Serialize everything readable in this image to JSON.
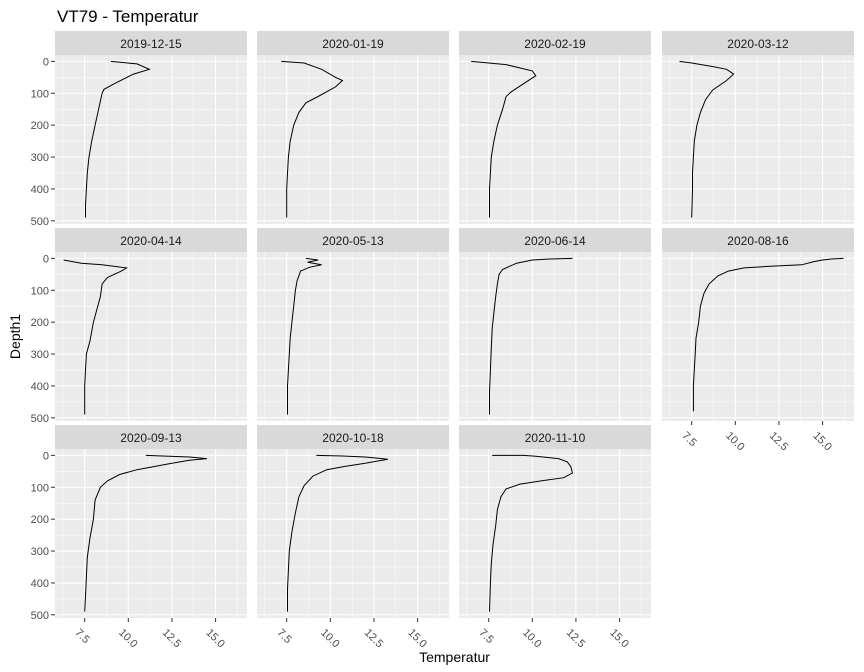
{
  "chart_data": {
    "type": "line",
    "title": "VT79  -  Temperatur",
    "xlabel": "Temperatur",
    "ylabel": "Depth1",
    "xlim": [
      5.8,
      16.8
    ],
    "ylim": [
      0,
      500
    ],
    "y_reversed": true,
    "xticks": [
      7.5,
      10.0,
      12.5,
      15.0
    ],
    "xtick_labels": [
      "7.5",
      "10.0",
      "12.5",
      "15.0"
    ],
    "yticks": [
      0,
      100,
      200,
      300,
      400,
      500
    ],
    "ytick_labels": [
      "0",
      "100",
      "200",
      "300",
      "400",
      "500"
    ],
    "grid": true,
    "facet_columns": 4,
    "panels": [
      {
        "label": "2019-12-15",
        "points": [
          [
            9.0,
            0
          ],
          [
            10.5,
            8
          ],
          [
            11.2,
            25
          ],
          [
            10.3,
            40
          ],
          [
            9.2,
            70
          ],
          [
            8.6,
            88
          ],
          [
            8.5,
            100
          ],
          [
            8.3,
            150
          ],
          [
            8.1,
            200
          ],
          [
            7.9,
            250
          ],
          [
            7.75,
            300
          ],
          [
            7.65,
            350
          ],
          [
            7.6,
            400
          ],
          [
            7.55,
            450
          ],
          [
            7.55,
            490
          ]
        ]
      },
      {
        "label": "2020-01-19",
        "points": [
          [
            7.2,
            0
          ],
          [
            8.5,
            5
          ],
          [
            9.5,
            25
          ],
          [
            10.3,
            50
          ],
          [
            10.7,
            60
          ],
          [
            10.3,
            80
          ],
          [
            9.3,
            110
          ],
          [
            8.6,
            130
          ],
          [
            8.2,
            160
          ],
          [
            7.9,
            200
          ],
          [
            7.7,
            250
          ],
          [
            7.6,
            300
          ],
          [
            7.55,
            350
          ],
          [
            7.5,
            400
          ],
          [
            7.5,
            490
          ]
        ]
      },
      {
        "label": "2020-02-19",
        "points": [
          [
            6.5,
            0
          ],
          [
            8.5,
            10
          ],
          [
            10.0,
            30
          ],
          [
            10.2,
            45
          ],
          [
            9.5,
            70
          ],
          [
            8.8,
            95
          ],
          [
            8.5,
            110
          ],
          [
            8.3,
            150
          ],
          [
            8.0,
            200
          ],
          [
            7.8,
            250
          ],
          [
            7.65,
            300
          ],
          [
            7.6,
            350
          ],
          [
            7.55,
            400
          ],
          [
            7.55,
            490
          ]
        ]
      },
      {
        "label": "2020-03-12",
        "points": [
          [
            6.8,
            0
          ],
          [
            7.5,
            5
          ],
          [
            8.6,
            15
          ],
          [
            9.5,
            25
          ],
          [
            9.9,
            40
          ],
          [
            9.5,
            60
          ],
          [
            8.7,
            90
          ],
          [
            8.3,
            120
          ],
          [
            8.0,
            160
          ],
          [
            7.8,
            200
          ],
          [
            7.65,
            250
          ],
          [
            7.6,
            300
          ],
          [
            7.55,
            350
          ],
          [
            7.55,
            400
          ],
          [
            7.5,
            490
          ]
        ]
      },
      {
        "label": "2020-04-14",
        "points": [
          [
            6.3,
            5
          ],
          [
            7.3,
            15
          ],
          [
            8.5,
            20
          ],
          [
            9.9,
            30
          ],
          [
            9.6,
            40
          ],
          [
            8.8,
            60
          ],
          [
            8.5,
            80
          ],
          [
            8.4,
            120
          ],
          [
            8.2,
            160
          ],
          [
            8.0,
            200
          ],
          [
            7.8,
            260
          ],
          [
            7.6,
            300
          ],
          [
            7.55,
            350
          ],
          [
            7.5,
            400
          ],
          [
            7.5,
            490
          ]
        ]
      },
      {
        "label": "2020-05-13",
        "points": [
          [
            8.6,
            0
          ],
          [
            9.3,
            5
          ],
          [
            8.7,
            12
          ],
          [
            9.5,
            20
          ],
          [
            8.8,
            28
          ],
          [
            8.3,
            40
          ],
          [
            8.1,
            70
          ],
          [
            8.0,
            100
          ],
          [
            7.9,
            150
          ],
          [
            7.8,
            200
          ],
          [
            7.7,
            250
          ],
          [
            7.65,
            300
          ],
          [
            7.6,
            350
          ],
          [
            7.55,
            400
          ],
          [
            7.55,
            490
          ]
        ]
      },
      {
        "label": "2020-06-14",
        "points": [
          [
            12.3,
            0
          ],
          [
            11.0,
            2
          ],
          [
            10.0,
            5
          ],
          [
            9.1,
            15
          ],
          [
            8.7,
            25
          ],
          [
            8.3,
            35
          ],
          [
            8.1,
            50
          ],
          [
            8.0,
            80
          ],
          [
            7.9,
            120
          ],
          [
            7.8,
            170
          ],
          [
            7.7,
            220
          ],
          [
            7.65,
            280
          ],
          [
            7.6,
            350
          ],
          [
            7.55,
            420
          ],
          [
            7.55,
            490
          ]
        ]
      },
      {
        "label": "2020-08-16",
        "points": [
          [
            16.2,
            0
          ],
          [
            15.5,
            2
          ],
          [
            15.0,
            5
          ],
          [
            14.5,
            10
          ],
          [
            13.8,
            20
          ],
          [
            12.0,
            25
          ],
          [
            10.5,
            30
          ],
          [
            9.6,
            40
          ],
          [
            9.0,
            55
          ],
          [
            8.5,
            80
          ],
          [
            8.2,
            110
          ],
          [
            8.0,
            150
          ],
          [
            7.9,
            200
          ],
          [
            7.75,
            250
          ],
          [
            7.7,
            300
          ],
          [
            7.65,
            350
          ],
          [
            7.6,
            400
          ],
          [
            7.6,
            480
          ]
        ]
      },
      {
        "label": "2020-09-13",
        "points": [
          [
            11.0,
            0
          ],
          [
            13.5,
            5
          ],
          [
            14.5,
            10
          ],
          [
            13.5,
            15
          ],
          [
            12.5,
            25
          ],
          [
            11.5,
            35
          ],
          [
            10.5,
            45
          ],
          [
            9.5,
            60
          ],
          [
            8.8,
            80
          ],
          [
            8.4,
            100
          ],
          [
            8.1,
            140
          ],
          [
            8.0,
            200
          ],
          [
            7.8,
            260
          ],
          [
            7.65,
            320
          ],
          [
            7.6,
            380
          ],
          [
            7.55,
            440
          ],
          [
            7.5,
            490
          ]
        ]
      },
      {
        "label": "2020-10-18",
        "points": [
          [
            9.2,
            0
          ],
          [
            10.7,
            2
          ],
          [
            12.0,
            5
          ],
          [
            13.3,
            12
          ],
          [
            12.0,
            25
          ],
          [
            10.8,
            35
          ],
          [
            9.8,
            45
          ],
          [
            9.0,
            65
          ],
          [
            8.5,
            95
          ],
          [
            8.2,
            130
          ],
          [
            8.0,
            180
          ],
          [
            7.8,
            240
          ],
          [
            7.65,
            300
          ],
          [
            7.6,
            360
          ],
          [
            7.55,
            420
          ],
          [
            7.55,
            490
          ]
        ]
      },
      {
        "label": "2020-11-10",
        "points": [
          [
            7.7,
            0
          ],
          [
            9.5,
            0
          ],
          [
            10.2,
            3
          ],
          [
            11.5,
            10
          ],
          [
            12.0,
            20
          ],
          [
            12.2,
            35
          ],
          [
            12.3,
            55
          ],
          [
            11.8,
            70
          ],
          [
            10.5,
            80
          ],
          [
            9.3,
            90
          ],
          [
            8.5,
            105
          ],
          [
            8.2,
            130
          ],
          [
            8.0,
            170
          ],
          [
            7.9,
            220
          ],
          [
            7.75,
            280
          ],
          [
            7.65,
            340
          ],
          [
            7.6,
            400
          ],
          [
            7.55,
            490
          ]
        ]
      }
    ],
    "colors": {
      "panel_bg": "#ebebeb",
      "strip_bg": "#d9d9d9",
      "grid_major": "#ffffff",
      "line": "#000000"
    }
  }
}
